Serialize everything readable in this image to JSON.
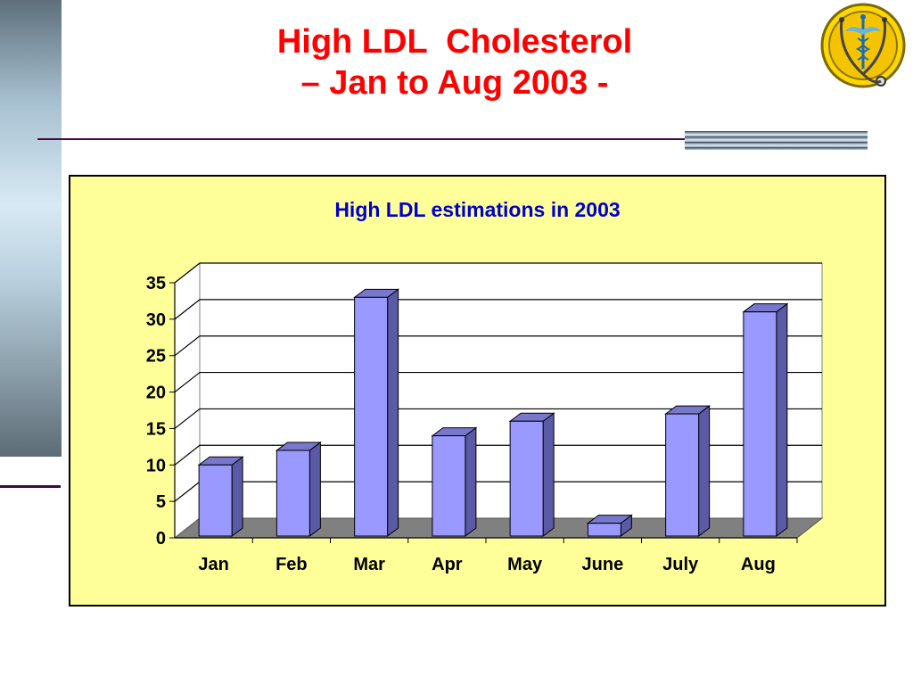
{
  "slide": {
    "title_line1": "High LDL  Cholesterol",
    "title_line2": "– Jan to Aug 2003 -"
  },
  "logo": {
    "icon": "caduceus-stethoscope-emblem-icon"
  },
  "colors": {
    "title": "#ff0000",
    "chart_background": "#ffff99",
    "chart_title": "#0000cc",
    "bar_front": "#9999ff",
    "bar_side": "#5a5aa6",
    "bar_top": "#7777cc",
    "floor": "#808080"
  },
  "chart_data": {
    "type": "bar",
    "style": "3d-column",
    "title": "High LDL estimations in 2003",
    "categories": [
      "Jan",
      "Feb",
      "Mar",
      "Apr",
      "May",
      "June",
      "July",
      "Aug"
    ],
    "values": [
      10,
      12,
      33,
      14,
      16,
      2,
      17,
      31
    ],
    "ylim": [
      0,
      35
    ],
    "yticks": [
      0,
      5,
      10,
      15,
      20,
      25,
      30,
      35
    ],
    "grid": true,
    "legend": "none"
  }
}
